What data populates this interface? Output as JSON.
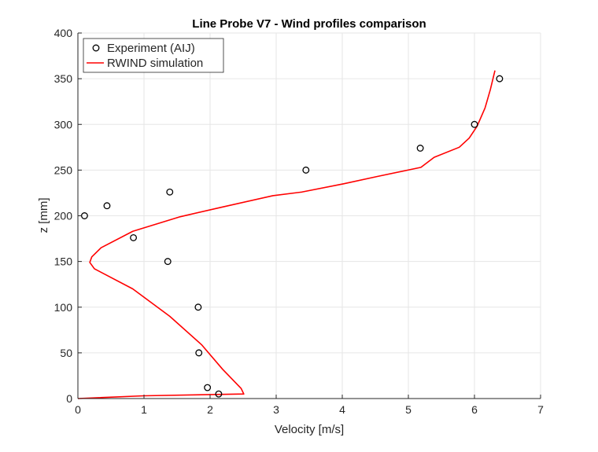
{
  "chart_data": {
    "type": "line",
    "title": "Line Probe V7 - Wind profiles comparison",
    "xlabel": "Velocity [m/s]",
    "ylabel": "z [mm]",
    "xlim": [
      0,
      7
    ],
    "ylim": [
      0,
      400
    ],
    "xticks": [
      0,
      1,
      2,
      3,
      4,
      5,
      6,
      7
    ],
    "yticks": [
      0,
      50,
      100,
      150,
      200,
      250,
      300,
      350,
      400
    ],
    "grid": true,
    "legend_position": "top-left",
    "series": [
      {
        "name": "Experiment (AIJ)",
        "style": "scatter-open-circle",
        "color": "#000000",
        "points": [
          [
            0.1,
            200
          ],
          [
            0.44,
            211
          ],
          [
            0.84,
            176
          ],
          [
            1.39,
            226
          ],
          [
            1.36,
            150
          ],
          [
            1.82,
            100
          ],
          [
            1.83,
            50
          ],
          [
            1.96,
            12
          ],
          [
            2.13,
            5
          ],
          [
            3.45,
            250
          ],
          [
            5.18,
            274
          ],
          [
            6.0,
            300
          ],
          [
            6.38,
            350
          ]
        ]
      },
      {
        "name": "RWIND simulation",
        "style": "line",
        "color": "#ff0000",
        "points": [
          [
            0,
            0
          ],
          [
            1,
            3
          ],
          [
            2.51,
            5
          ],
          [
            2.47,
            11
          ],
          [
            2.19,
            32
          ],
          [
            1.87,
            59
          ],
          [
            1.39,
            90
          ],
          [
            0.83,
            120
          ],
          [
            0.25,
            142
          ],
          [
            0.18,
            149
          ],
          [
            0.21,
            155
          ],
          [
            0.35,
            165
          ],
          [
            0.83,
            183
          ],
          [
            1.55,
            199
          ],
          [
            2.15,
            209
          ],
          [
            2.95,
            222
          ],
          [
            3.39,
            226
          ],
          [
            4.02,
            235
          ],
          [
            4.53,
            243
          ],
          [
            5.19,
            253
          ],
          [
            5.39,
            264
          ],
          [
            5.77,
            275
          ],
          [
            5.92,
            285
          ],
          [
            6.04,
            298
          ],
          [
            6.16,
            318
          ],
          [
            6.24,
            338
          ],
          [
            6.31,
            359
          ]
        ]
      }
    ]
  }
}
